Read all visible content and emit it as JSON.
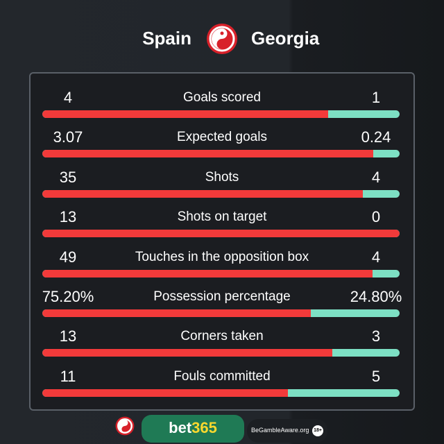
{
  "header": {
    "home_team": "Spain",
    "away_team": "Georgia",
    "logo_icon": "swirl-logo-icon"
  },
  "colors": {
    "home": "#f23a3a",
    "away": "#7de0c4",
    "accent": "#d8212a"
  },
  "stats": [
    {
      "label": "Goals scored",
      "home": "4",
      "away": "1",
      "home_share": 0.8
    },
    {
      "label": "Expected goals",
      "home": "3.07",
      "away": "0.24",
      "home_share": 0.927
    },
    {
      "label": "Shots",
      "home": "35",
      "away": "4",
      "home_share": 0.897
    },
    {
      "label": "Shots on target",
      "home": "13",
      "away": "0",
      "home_share": 1.0
    },
    {
      "label": "Touches in the opposition box",
      "home": "49",
      "away": "4",
      "home_share": 0.925
    },
    {
      "label": "Possession percentage",
      "home": "75.20%",
      "away": "24.80%",
      "home_share": 0.752
    },
    {
      "label": "Corners taken",
      "home": "13",
      "away": "3",
      "home_share": 0.8125
    },
    {
      "label": "Fouls committed",
      "home": "11",
      "away": "5",
      "home_share": 0.6875
    }
  ],
  "footer": {
    "bet_a": "bet",
    "bet_b": "365",
    "gamble_aware": "BeGambleAware.org",
    "age": "18+"
  }
}
